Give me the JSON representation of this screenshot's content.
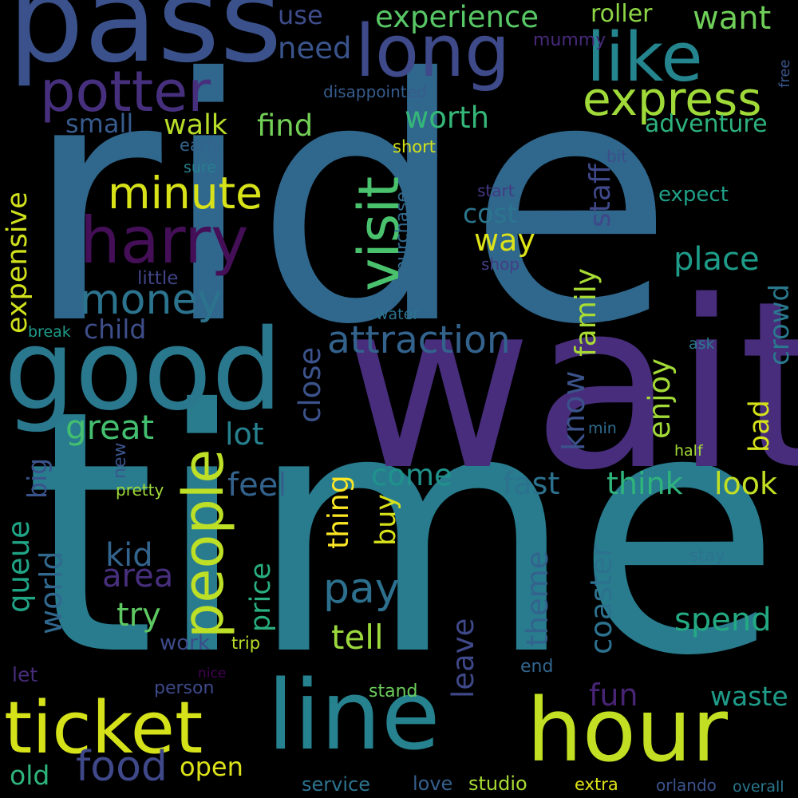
{
  "wordcloud": {
    "words": [
      {
        "text": "ride",
        "color": "#30678d"
      },
      {
        "text": "time",
        "color": "#287c8e"
      },
      {
        "text": "wait",
        "color": "#472d7b"
      },
      {
        "text": "pass",
        "color": "#3b518b"
      },
      {
        "text": "good",
        "color": "#2a788e"
      },
      {
        "text": "line",
        "color": "#26828e"
      },
      {
        "text": "hour",
        "color": "#c2df23"
      },
      {
        "text": "ticket",
        "color": "#d5e21a"
      },
      {
        "text": "long",
        "color": "#3e4a89"
      },
      {
        "text": "like",
        "color": "#25858e"
      },
      {
        "text": "potter",
        "color": "#46307e"
      },
      {
        "text": "harry",
        "color": "#440f57"
      },
      {
        "text": "people",
        "color": "#bddf26"
      },
      {
        "text": "visit",
        "color": "#4ac16d"
      },
      {
        "text": "express",
        "color": "#a0da39"
      },
      {
        "text": "minute",
        "color": "#d8e219"
      },
      {
        "text": "money",
        "color": "#2c738e"
      },
      {
        "text": "attraction",
        "color": "#33638d"
      },
      {
        "text": "food",
        "color": "#3f4889"
      },
      {
        "text": "pay",
        "color": "#2d708e"
      },
      {
        "text": "experience",
        "color": "#58c765"
      },
      {
        "text": "want",
        "color": "#6ece58"
      },
      {
        "text": "roller",
        "color": "#8ed645"
      },
      {
        "text": "use",
        "color": "#3e4c8a"
      },
      {
        "text": "need",
        "color": "#3a548c"
      },
      {
        "text": "mummy",
        "color": "#472a7a"
      },
      {
        "text": "free",
        "color": "#39558c"
      },
      {
        "text": "disappointed",
        "color": "#365d8d"
      },
      {
        "text": "small",
        "color": "#375b8d"
      },
      {
        "text": "walk",
        "color": "#b8de29"
      },
      {
        "text": "find",
        "color": "#73d056"
      },
      {
        "text": "worth",
        "color": "#35b779"
      },
      {
        "text": "adventure",
        "color": "#2db27d"
      },
      {
        "text": "early",
        "color": "#32648e"
      },
      {
        "text": "short",
        "color": "#d2e21b"
      },
      {
        "text": "bit",
        "color": "#3c4f8a"
      },
      {
        "text": "sure",
        "color": "#277f8e"
      },
      {
        "text": "staff",
        "color": "#3f4889"
      },
      {
        "text": "expect",
        "color": "#1fa188"
      },
      {
        "text": "start",
        "color": "#443983"
      },
      {
        "text": "cost",
        "color": "#2b758e"
      },
      {
        "text": "way",
        "color": "#dde318"
      },
      {
        "text": "purchase",
        "color": "#31688e"
      },
      {
        "text": "shop",
        "color": "#433e85"
      },
      {
        "text": "place",
        "color": "#1e9c89"
      },
      {
        "text": "expensive",
        "color": "#d0e11c"
      },
      {
        "text": "little",
        "color": "#414487"
      },
      {
        "text": "family",
        "color": "#a8db34"
      },
      {
        "text": "crowd",
        "color": "#2a788e"
      },
      {
        "text": "water",
        "color": "#2c728e"
      },
      {
        "text": "break",
        "color": "#1e9b8a"
      },
      {
        "text": "child",
        "color": "#3d4e8a"
      },
      {
        "text": "close",
        "color": "#3b528b"
      },
      {
        "text": "ask",
        "color": "#29798e"
      },
      {
        "text": "enjoy",
        "color": "#a2da37"
      },
      {
        "text": "know",
        "color": "#3b528b"
      },
      {
        "text": "bad",
        "color": "#d5e21a"
      },
      {
        "text": "great",
        "color": "#44bf70"
      },
      {
        "text": "lot",
        "color": "#27808e"
      },
      {
        "text": "min",
        "color": "#2f6c8e"
      },
      {
        "text": "half",
        "color": "#a5db36"
      },
      {
        "text": "big",
        "color": "#3a548c"
      },
      {
        "text": "new",
        "color": "#3a548c"
      },
      {
        "text": "pretty",
        "color": "#a0da39"
      },
      {
        "text": "feel",
        "color": "#33638d"
      },
      {
        "text": "come",
        "color": "#20928c"
      },
      {
        "text": "thing",
        "color": "#fde725"
      },
      {
        "text": "fast",
        "color": "#2c728e"
      },
      {
        "text": "think",
        "color": "#2fb47c"
      },
      {
        "text": "look",
        "color": "#c2df23"
      },
      {
        "text": "stay",
        "color": "#2c728e"
      },
      {
        "text": "queue",
        "color": "#20a486"
      },
      {
        "text": "world",
        "color": "#31688e"
      },
      {
        "text": "kid",
        "color": "#32648e"
      },
      {
        "text": "area",
        "color": "#472f7d"
      },
      {
        "text": "price",
        "color": "#29af7f"
      },
      {
        "text": "buy",
        "color": "#d8e219"
      },
      {
        "text": "theme",
        "color": "#33638d"
      },
      {
        "text": "coaster",
        "color": "#2c728e"
      },
      {
        "text": "try",
        "color": "#5ec962"
      },
      {
        "text": "tell",
        "color": "#9bd93c"
      },
      {
        "text": "leave",
        "color": "#3f4889"
      },
      {
        "text": "spend",
        "color": "#24aa83"
      },
      {
        "text": "work",
        "color": "#3e4a89"
      },
      {
        "text": "trip",
        "color": "#b8de29"
      },
      {
        "text": "end",
        "color": "#32658e"
      },
      {
        "text": "let",
        "color": "#472c7a"
      },
      {
        "text": "nice",
        "color": "#440154"
      },
      {
        "text": "person",
        "color": "#3e4989"
      },
      {
        "text": "stand",
        "color": "#6ccd5a"
      },
      {
        "text": "fun",
        "color": "#482475"
      },
      {
        "text": "waste",
        "color": "#1e9c89"
      },
      {
        "text": "old",
        "color": "#2fb47c"
      },
      {
        "text": "open",
        "color": "#dde318"
      },
      {
        "text": "service",
        "color": "#2c738e"
      },
      {
        "text": "love",
        "color": "#35608d"
      },
      {
        "text": "studio",
        "color": "#a8db34"
      },
      {
        "text": "extra",
        "color": "#dde318"
      },
      {
        "text": "orlando",
        "color": "#3b528b"
      },
      {
        "text": "overall",
        "color": "#2a788e"
      }
    ]
  }
}
